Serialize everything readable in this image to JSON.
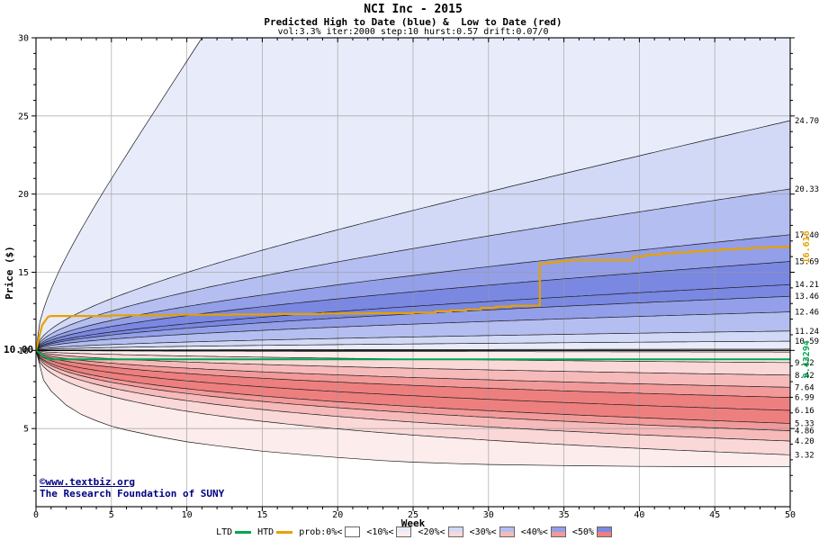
{
  "colors": {
    "accent_orange": "#e8a000",
    "accent_green": "#00a550",
    "copyright_navy": "#000080",
    "grid_gray": "#999999"
  },
  "footer": {
    "link_text": "©www.textbiz.org",
    "credit_text": "The Research Foundation of SUNY"
  },
  "legend": {
    "items": [
      {
        "label": "LTD",
        "swatch": "line",
        "color": "#00a550"
      },
      {
        "label": "HTD",
        "swatch": "line",
        "color": "#e8a000"
      },
      {
        "label": "prob:0%<",
        "swatch": "box",
        "blue": "#ffffff",
        "red": "#ffffff"
      },
      {
        "label": "<10%<",
        "swatch": "box",
        "blue": "#e8ecfa",
        "red": "#fcecec"
      },
      {
        "label": "<20%<",
        "swatch": "box",
        "blue": "#d2d9f6",
        "red": "#fad8d8"
      },
      {
        "label": "<30%<",
        "swatch": "box",
        "blue": "#b4bef0",
        "red": "#f6baba"
      },
      {
        "label": "<40%<",
        "swatch": "box",
        "blue": "#939fe8",
        "red": "#f29a9a"
      },
      {
        "label": "<50%",
        "swatch": "box",
        "blue": "#7a88e2",
        "red": "#ee7f7f"
      }
    ]
  },
  "chart_data": {
    "type": "area",
    "title": "NCI Inc - 2015",
    "subtitle": "Predicted High to Date (blue) &  Low to Date (red)",
    "params_line": "vol:3.3% iter:2000 step:10 hurst:0.57 drift:0.07/0",
    "xlabel": "Week",
    "ylabel": "Price ($)",
    "xlim": [
      0,
      50
    ],
    "ylim": [
      0,
      30
    ],
    "xticks": [
      0,
      5,
      10,
      15,
      20,
      25,
      30,
      35,
      40,
      45,
      50
    ],
    "yticks": [
      5,
      10,
      15,
      20,
      25,
      30
    ],
    "grid": true,
    "start_price": 10.0,
    "start_price_label": "10.00",
    "high_band_finals_outer_to_inner": [
      24.7,
      20.33,
      17.4,
      15.69,
      14.21,
      13.46,
      12.46,
      11.24,
      10.59,
      10.08
    ],
    "low_band_finals_outer_to_inner": [
      3.32,
      4.2,
      4.86,
      5.33,
      6.16,
      6.99,
      7.64,
      8.42,
      9.22,
      9.9
    ],
    "right_axis_labels_high": [
      "24.70",
      "20.33",
      "17.40",
      "15.69",
      "14.21",
      "13.46",
      "12.46",
      "11.24",
      "10.59"
    ],
    "right_axis_labels_low": [
      "9.22",
      "8.42",
      "7.64",
      "6.99",
      "6.16",
      "5.33",
      "4.86",
      "4.20",
      "3.32"
    ],
    "envelope_high_exit": {
      "week": 11,
      "value": 30
    },
    "envelope_low_points": [
      [
        0,
        10
      ],
      [
        0.5,
        8.1
      ],
      [
        1,
        7.4
      ],
      [
        2,
        6.5
      ],
      [
        3,
        5.9
      ],
      [
        4,
        5.5
      ],
      [
        5,
        5.15
      ],
      [
        6,
        4.9
      ],
      [
        8,
        4.5
      ],
      [
        10,
        4.15
      ],
      [
        12,
        3.9
      ],
      [
        15,
        3.55
      ],
      [
        18,
        3.3
      ],
      [
        20,
        3.15
      ],
      [
        23,
        2.95
      ],
      [
        25,
        2.85
      ],
      [
        28,
        2.75
      ],
      [
        30,
        2.7
      ],
      [
        35,
        2.63
      ],
      [
        40,
        2.58
      ],
      [
        45,
        2.56
      ],
      [
        50,
        2.55
      ]
    ],
    "band_colors_blue_light_to_dark": [
      "#e8ecfa",
      "#d2d9f6",
      "#b4bef0",
      "#939fe8",
      "#7a88e2"
    ],
    "band_colors_red_light_to_dark": [
      "#fcecec",
      "#fad8d8",
      "#f6baba",
      "#f29a9a",
      "#ee7f7f"
    ],
    "htd": {
      "name": "HTD",
      "color": "#e8a000",
      "end_label": "16.616",
      "steps": [
        [
          0,
          10.0
        ],
        [
          0.4,
          11.6
        ],
        [
          0.8,
          12.15
        ],
        [
          1,
          12.2
        ],
        [
          5,
          12.2
        ],
        [
          5,
          12.24
        ],
        [
          9,
          12.24
        ],
        [
          9,
          12.28
        ],
        [
          13,
          12.28
        ],
        [
          13,
          12.3
        ],
        [
          16,
          12.3
        ],
        [
          16,
          12.33
        ],
        [
          19,
          12.33
        ],
        [
          19,
          12.36
        ],
        [
          22,
          12.36
        ],
        [
          22,
          12.38
        ],
        [
          25,
          12.38
        ],
        [
          25,
          12.42
        ],
        [
          26.5,
          12.42
        ],
        [
          26.5,
          12.5
        ],
        [
          27.5,
          12.5
        ],
        [
          27.5,
          12.56
        ],
        [
          28.5,
          12.56
        ],
        [
          28.5,
          12.62
        ],
        [
          29.5,
          12.62
        ],
        [
          29.5,
          12.72
        ],
        [
          30.5,
          12.72
        ],
        [
          30.5,
          12.8
        ],
        [
          31.5,
          12.8
        ],
        [
          31.5,
          12.86
        ],
        [
          33.4,
          12.86
        ],
        [
          33.4,
          15.55
        ],
        [
          34,
          15.55
        ],
        [
          34,
          15.63
        ],
        [
          34.6,
          15.63
        ],
        [
          34.6,
          15.7
        ],
        [
          35.4,
          15.7
        ],
        [
          35.4,
          15.78
        ],
        [
          39.6,
          15.78
        ],
        [
          39.6,
          16.02
        ],
        [
          40.4,
          16.02
        ],
        [
          40.4,
          16.12
        ],
        [
          41.4,
          16.12
        ],
        [
          41.4,
          16.2
        ],
        [
          42.4,
          16.2
        ],
        [
          42.4,
          16.27
        ],
        [
          43.4,
          16.27
        ],
        [
          43.4,
          16.33
        ],
        [
          44.4,
          16.33
        ],
        [
          44.4,
          16.4
        ],
        [
          45.4,
          16.4
        ],
        [
          45.4,
          16.46
        ],
        [
          46.4,
          16.46
        ],
        [
          46.4,
          16.51
        ],
        [
          47.4,
          16.51
        ],
        [
          47.4,
          16.56
        ],
        [
          48.4,
          16.56
        ],
        [
          48.4,
          16.6
        ],
        [
          49.2,
          16.6
        ],
        [
          49.2,
          16.616
        ],
        [
          50,
          16.616
        ]
      ]
    },
    "ltd": {
      "name": "LTD",
      "color": "#00a550",
      "end_label": "9.43294",
      "value": 9.43294,
      "points": [
        [
          0,
          10
        ],
        [
          0.8,
          9.43294
        ],
        [
          50,
          9.43294
        ]
      ]
    }
  }
}
